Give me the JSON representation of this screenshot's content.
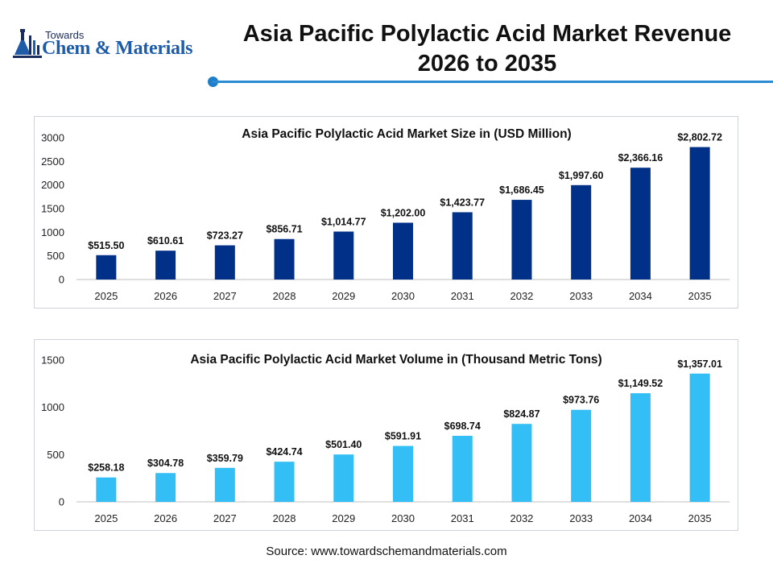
{
  "header": {
    "logo_small": "Towards",
    "logo_large": "Chem & Materials",
    "title_line1": "Asia Pacific Polylactic Acid Market Revenue",
    "title_line2": "2026 to 2035"
  },
  "source": "Source: www.towardschemandmaterials.com",
  "colors": {
    "size_bar": "#003087",
    "volume_bar": "#33bff5",
    "accent_line": "#2a8bd3",
    "logo_blue": "#1f5ca8"
  },
  "chart_data": [
    {
      "type": "bar",
      "title": "Asia Pacific Polylactic Acid Market Size in (USD Million)",
      "categories": [
        "2025",
        "2026",
        "2027",
        "2028",
        "2029",
        "2030",
        "2031",
        "2032",
        "2033",
        "2034",
        "2035"
      ],
      "values": [
        515.5,
        610.61,
        723.27,
        856.71,
        1014.77,
        1202.0,
        1423.77,
        1686.45,
        1997.6,
        2366.16,
        2802.72
      ],
      "labels": [
        "$515.50",
        "$610.61",
        "$723.27",
        "$856.71",
        "$1,014.77",
        "$1,202.00",
        "$1,423.77",
        "$1,686.45",
        "$1,997.60",
        "$2,366.16",
        "$2,802.72"
      ],
      "yticks": [
        0,
        500,
        1000,
        1500,
        2000,
        2500,
        3000
      ],
      "ylim": [
        0,
        3000
      ],
      "grid": false,
      "legend": "none",
      "color": "#003087"
    },
    {
      "type": "bar",
      "title": "Asia Pacific Polylactic Acid Market Volume in (Thousand Metric Tons)",
      "categories": [
        "2025",
        "2026",
        "2027",
        "2028",
        "2029",
        "2030",
        "2031",
        "2032",
        "2033",
        "2034",
        "2035"
      ],
      "values": [
        258.18,
        304.78,
        359.79,
        424.74,
        501.4,
        591.91,
        698.74,
        824.87,
        973.76,
        1149.52,
        1357.01
      ],
      "labels": [
        "$258.18",
        "$304.78",
        "$359.79",
        "$424.74",
        "$501.40",
        "$591.91",
        "$698.74",
        "$824.87",
        "$973.76",
        "$1,149.52",
        "$1,357.01"
      ],
      "yticks": [
        0,
        500,
        1000,
        1500
      ],
      "ylim": [
        0,
        1500
      ],
      "grid": false,
      "legend": "none",
      "color": "#33bff5"
    }
  ]
}
